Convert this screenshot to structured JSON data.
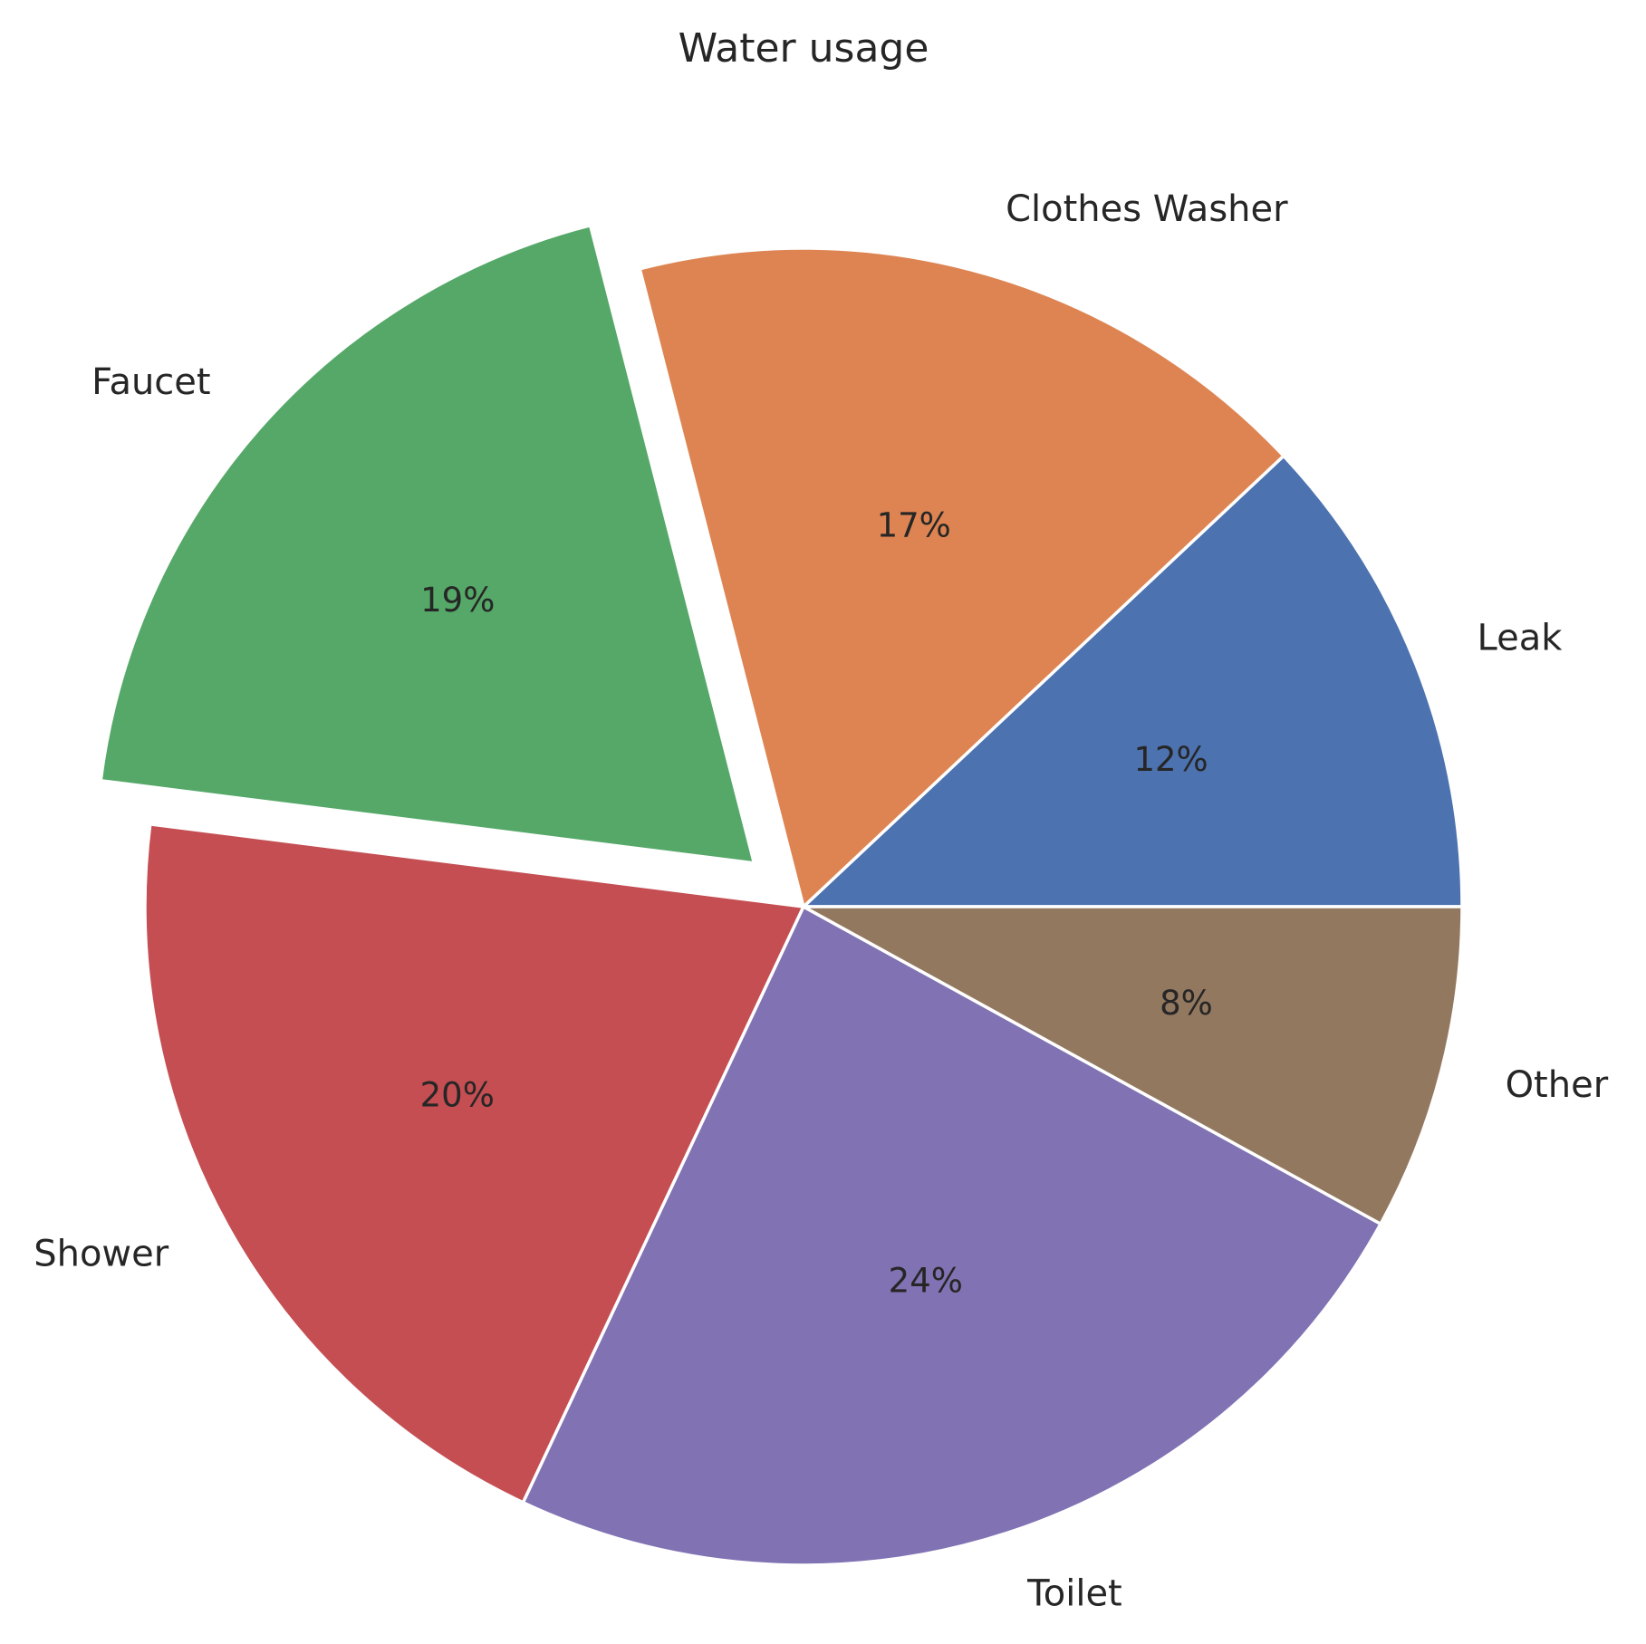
{
  "chart_data": {
    "type": "pie",
    "title": "Water usage",
    "start_angle_deg": 0,
    "direction": "counterclockwise",
    "slices": [
      {
        "label": "Leak",
        "value": 12,
        "pct_label": "12%",
        "color": "#4c72b0",
        "exploded": false
      },
      {
        "label": "Clothes Washer",
        "value": 17,
        "pct_label": "17%",
        "color": "#dd8452",
        "exploded": false
      },
      {
        "label": "Faucet",
        "value": 19,
        "pct_label": "19%",
        "color": "#55a868",
        "exploded": true
      },
      {
        "label": "Shower",
        "value": 20,
        "pct_label": "20%",
        "color": "#c44e52",
        "exploded": false
      },
      {
        "label": "Toilet",
        "value": 24,
        "pct_label": "24%",
        "color": "#8172b3",
        "exploded": false
      },
      {
        "label": "Other",
        "value": 8,
        "pct_label": "8%",
        "color": "#937860",
        "exploded": false
      }
    ]
  }
}
